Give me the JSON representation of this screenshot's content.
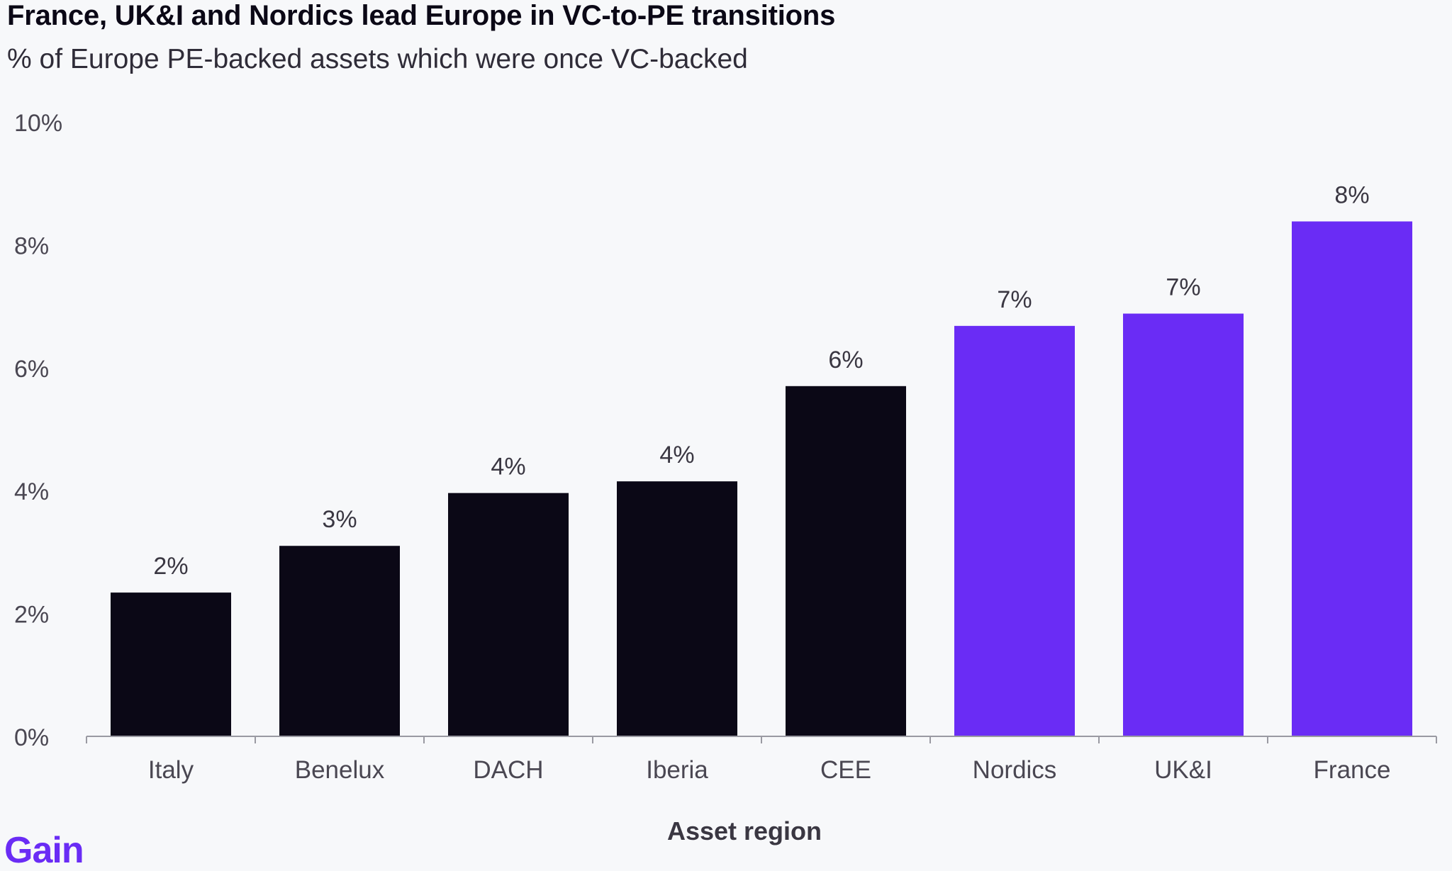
{
  "header": {
    "title": "France, UK&I and Nordics lead Europe in VC-to-PE transitions",
    "subtitle": "% of Europe PE-backed assets which were once VC-backed"
  },
  "brand": {
    "logo_text": "Gain",
    "color": "#6a2cf5"
  },
  "colors": {
    "bar_default": "#0b0816",
    "bar_highlight": "#6a2cf5",
    "axis": "#9a9aa2",
    "tick_text": "#4a4752",
    "label_text": "#3a3742"
  },
  "chart_data": {
    "type": "bar",
    "title": "France, UK&I and Nordics lead Europe in VC-to-PE transitions",
    "subtitle": "% of Europe PE-backed assets which were once VC-backed",
    "xlabel": "Asset region",
    "ylabel": "",
    "categories": [
      "Italy",
      "Benelux",
      "DACH",
      "Iberia",
      "CEE",
      "Nordics",
      "UK&I",
      "France"
    ],
    "values": [
      2.34,
      3.1,
      3.96,
      4.15,
      5.7,
      6.68,
      6.88,
      8.38
    ],
    "data_labels": [
      "2%",
      "3%",
      "4%",
      "4%",
      "6%",
      "7%",
      "7%",
      "8%"
    ],
    "highlighted": [
      false,
      false,
      false,
      false,
      false,
      true,
      true,
      true
    ],
    "ylim": [
      0,
      10
    ],
    "yticks": [
      0,
      2,
      4,
      6,
      8,
      10
    ],
    "ytick_labels": [
      "0%",
      "2%",
      "4%",
      "6%",
      "8%",
      "10%"
    ],
    "grid": false,
    "legend": "none"
  }
}
